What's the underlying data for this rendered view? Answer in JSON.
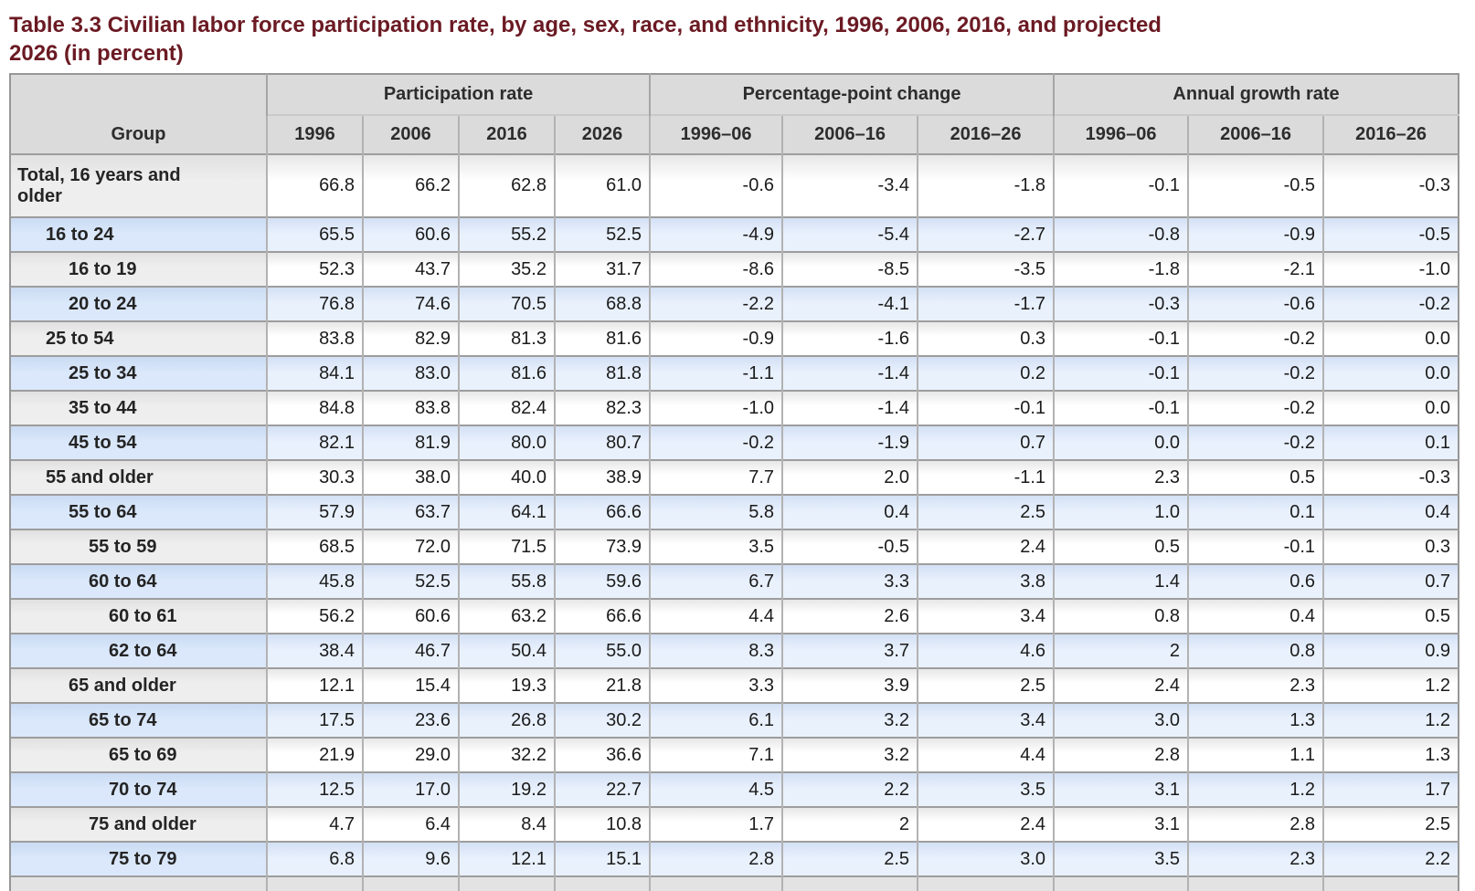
{
  "title": {
    "line1": "Table 3.3 Civilian labor force participation rate, by age, sex, race, and ethnicity, 1996, 2006, 2016, and projected",
    "line2": "2026 (in percent)"
  },
  "colors": {
    "title_text": "#6b1a23",
    "header_bg": "#dbdbdb",
    "stripe_blue": "#dbe8fb",
    "stripe_gray": "#ebebeb",
    "border_dark": "#9d9d9d",
    "border_light": "#b2b2b2"
  },
  "table": {
    "header": {
      "group": "Group",
      "participation": "Participation rate",
      "ppc": "Percentage-point change",
      "agr": "Annual growth rate"
    },
    "subheader": [
      "1996",
      "2006",
      "2016",
      "2026",
      "1996–06",
      "2006–16",
      "2016–26",
      "1996–06",
      "2006–16",
      "2016–26"
    ],
    "rows": [
      {
        "group": "Total, 16 years and older",
        "indent": 0,
        "values": [
          "66.8",
          "66.2",
          "62.8",
          "61.0",
          "-0.6",
          "-3.4",
          "-1.8",
          "-0.1",
          "-0.5",
          "-0.3"
        ]
      },
      {
        "group": "16 to 24",
        "indent": 1,
        "values": [
          "65.5",
          "60.6",
          "55.2",
          "52.5",
          "-4.9",
          "-5.4",
          "-2.7",
          "-0.8",
          "-0.9",
          "-0.5"
        ]
      },
      {
        "group": "16 to 19",
        "indent": 2,
        "values": [
          "52.3",
          "43.7",
          "35.2",
          "31.7",
          "-8.6",
          "-8.5",
          "-3.5",
          "-1.8",
          "-2.1",
          "-1.0"
        ]
      },
      {
        "group": "20 to 24",
        "indent": 2,
        "values": [
          "76.8",
          "74.6",
          "70.5",
          "68.8",
          "-2.2",
          "-4.1",
          "-1.7",
          "-0.3",
          "-0.6",
          "-0.2"
        ]
      },
      {
        "group": "25 to 54",
        "indent": 1,
        "values": [
          "83.8",
          "82.9",
          "81.3",
          "81.6",
          "-0.9",
          "-1.6",
          "0.3",
          "-0.1",
          "-0.2",
          "0.0"
        ]
      },
      {
        "group": "25 to 34",
        "indent": 2,
        "values": [
          "84.1",
          "83.0",
          "81.6",
          "81.8",
          "-1.1",
          "-1.4",
          "0.2",
          "-0.1",
          "-0.2",
          "0.0"
        ]
      },
      {
        "group": "35 to 44",
        "indent": 2,
        "values": [
          "84.8",
          "83.8",
          "82.4",
          "82.3",
          "-1.0",
          "-1.4",
          "-0.1",
          "-0.1",
          "-0.2",
          "0.0"
        ]
      },
      {
        "group": "45 to 54",
        "indent": 2,
        "values": [
          "82.1",
          "81.9",
          "80.0",
          "80.7",
          "-0.2",
          "-1.9",
          "0.7",
          "0.0",
          "-0.2",
          "0.1"
        ]
      },
      {
        "group": "55 and older",
        "indent": 1,
        "values": [
          "30.3",
          "38.0",
          "40.0",
          "38.9",
          "7.7",
          "2.0",
          "-1.1",
          "2.3",
          "0.5",
          "-0.3"
        ]
      },
      {
        "group": "55 to 64",
        "indent": 2,
        "values": [
          "57.9",
          "63.7",
          "64.1",
          "66.6",
          "5.8",
          "0.4",
          "2.5",
          "1.0",
          "0.1",
          "0.4"
        ]
      },
      {
        "group": "55 to 59",
        "indent": 3,
        "values": [
          "68.5",
          "72.0",
          "71.5",
          "73.9",
          "3.5",
          "-0.5",
          "2.4",
          "0.5",
          "-0.1",
          "0.3"
        ]
      },
      {
        "group": "60 to 64",
        "indent": 3,
        "values": [
          "45.8",
          "52.5",
          "55.8",
          "59.6",
          "6.7",
          "3.3",
          "3.8",
          "1.4",
          "0.6",
          "0.7"
        ]
      },
      {
        "group": "60 to 61",
        "indent": 4,
        "values": [
          "56.2",
          "60.6",
          "63.2",
          "66.6",
          "4.4",
          "2.6",
          "3.4",
          "0.8",
          "0.4",
          "0.5"
        ]
      },
      {
        "group": "62 to 64",
        "indent": 4,
        "values": [
          "38.4",
          "46.7",
          "50.4",
          "55.0",
          "8.3",
          "3.7",
          "4.6",
          "2",
          "0.8",
          "0.9"
        ]
      },
      {
        "group": "65 and older",
        "indent": 2,
        "values": [
          "12.1",
          "15.4",
          "19.3",
          "21.8",
          "3.3",
          "3.9",
          "2.5",
          "2.4",
          "2.3",
          "1.2"
        ]
      },
      {
        "group": "65 to 74",
        "indent": 3,
        "values": [
          "17.5",
          "23.6",
          "26.8",
          "30.2",
          "6.1",
          "3.2",
          "3.4",
          "3.0",
          "1.3",
          "1.2"
        ]
      },
      {
        "group": "65 to 69",
        "indent": 4,
        "values": [
          "21.9",
          "29.0",
          "32.2",
          "36.6",
          "7.1",
          "3.2",
          "4.4",
          "2.8",
          "1.1",
          "1.3"
        ]
      },
      {
        "group": "70 to 74",
        "indent": 4,
        "values": [
          "12.5",
          "17.0",
          "19.2",
          "22.7",
          "4.5",
          "2.2",
          "3.5",
          "3.1",
          "1.2",
          "1.7"
        ]
      },
      {
        "group": "75 and older",
        "indent": 3,
        "values": [
          "4.7",
          "6.4",
          "8.4",
          "10.8",
          "1.7",
          "2",
          "2.4",
          "3.1",
          "2.8",
          "2.5"
        ]
      },
      {
        "group": "75 to 79",
        "indent": 4,
        "values": [
          "6.8",
          "9.6",
          "12.1",
          "15.1",
          "2.8",
          "2.5",
          "3.0",
          "3.5",
          "2.3",
          "2.2"
        ]
      }
    ]
  }
}
